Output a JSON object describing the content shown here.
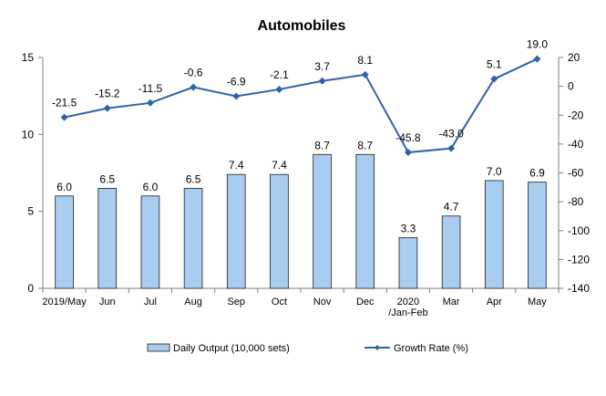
{
  "chart_data": {
    "type": "bar+line",
    "title": "Automobiles",
    "categories": [
      "2019/May",
      "Jun",
      "Jul",
      "Aug",
      "Sep",
      "Oct",
      "Nov",
      "Dec",
      "2020\n/Jan-Feb",
      "Mar",
      "Apr",
      "May"
    ],
    "series": [
      {
        "name": "Daily Output (10,000 sets)",
        "type": "bar",
        "axis": "left",
        "values": [
          6.0,
          6.5,
          6.0,
          6.5,
          7.4,
          7.4,
          8.7,
          8.7,
          3.3,
          4.7,
          7.0,
          6.9
        ],
        "labels": [
          "6.0",
          "6.5",
          "6.0",
          "6.5",
          "7.4",
          "7.4",
          "8.7",
          "8.7",
          "3.3",
          "4.7",
          "7.0",
          "6.9"
        ],
        "color": "#a9cdf0"
      },
      {
        "name": "Growth Rate (%)",
        "type": "line",
        "axis": "right",
        "values": [
          -21.5,
          -15.2,
          -11.5,
          -0.6,
          -6.9,
          -2.1,
          3.7,
          8.1,
          -45.8,
          -43.0,
          5.1,
          19.0
        ],
        "labels": [
          "-21.5",
          "-15.2",
          "-11.5",
          "-0.6",
          "-6.9",
          "-2.1",
          "3.7",
          "8.1",
          "-45.8",
          "-43.0",
          "5.1",
          "19.0"
        ],
        "color": "#2e63a8"
      }
    ],
    "y_left": {
      "min": 0,
      "max": 15,
      "ticks": [
        "0",
        "5",
        "10",
        "15"
      ]
    },
    "y_right": {
      "min": -140,
      "max": 20,
      "ticks": [
        "-140",
        "-120",
        "-100",
        "-80",
        "-60",
        "-40",
        "-20",
        "0",
        "20"
      ]
    },
    "grid": false,
    "legend": "bottom"
  }
}
